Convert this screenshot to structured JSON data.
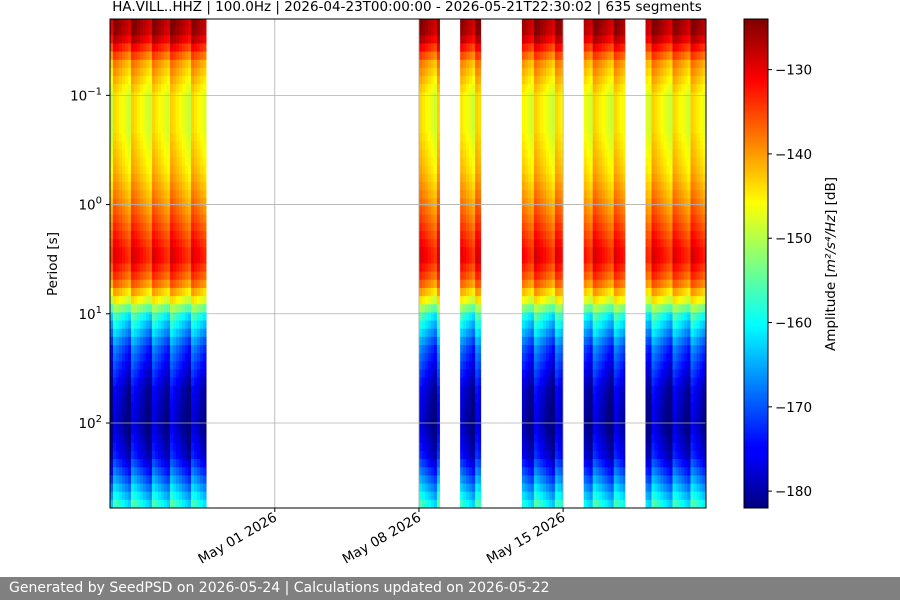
{
  "chart_data": {
    "type": "heatmap",
    "title": "HA.VILL..HHZ | 100.0Hz | 2026-04-23T00:00:00 - 2026-05-21T22:30:02 | 635 segments",
    "xlabel": "",
    "ylabel": "Period [s]",
    "x_axis": {
      "type": "date",
      "range": [
        "2026-04-23T00:00:00",
        "2026-05-21T22:30:02"
      ],
      "ticks": [
        {
          "value": "2026-05-01",
          "label": "May 01 2026"
        },
        {
          "value": "2026-05-08",
          "label": "May 08 2026"
        },
        {
          "value": "2026-05-15",
          "label": "May 15 2026"
        }
      ]
    },
    "y_axis": {
      "scale": "log",
      "inverted": true,
      "range": [
        0.02,
        600
      ],
      "ticks": [
        {
          "value": 0.1,
          "base": "10",
          "exp": "−1"
        },
        {
          "value": 1,
          "base": "10",
          "exp": "0"
        },
        {
          "value": 10,
          "base": "10",
          "exp": "1"
        },
        {
          "value": 100,
          "base": "10",
          "exp": "2"
        }
      ]
    },
    "grid": true,
    "colorbar": {
      "label_pre": "Amplitude [",
      "label_math": "m²/s⁴/Hz",
      "label_post": "] [dB]",
      "colormap": "jet",
      "range": [
        -182,
        -124
      ],
      "ticks": [
        -130,
        -140,
        -150,
        -160,
        -170,
        -180
      ],
      "tick_labels": [
        "−130",
        "−140",
        "−150",
        "−160",
        "−170",
        "−180"
      ]
    },
    "data_intervals": [
      {
        "start": "2026-04-23T00:00:00",
        "end": "2026-04-27T16:00:00"
      },
      {
        "start": "2026-05-08T00:00:00",
        "end": "2026-05-09T00:00:00"
      },
      {
        "start": "2026-05-10T00:00:00",
        "end": "2026-05-11T00:00:00"
      },
      {
        "start": "2026-05-13T00:00:00",
        "end": "2026-05-15T00:00:00"
      },
      {
        "start": "2026-05-16T00:00:00",
        "end": "2026-05-18T00:00:00"
      },
      {
        "start": "2026-05-19T00:00:00",
        "end": "2026-05-21T22:30:02"
      }
    ],
    "period_profile": [
      {
        "period": 0.02,
        "db": -126
      },
      {
        "period": 0.028,
        "db": -127
      },
      {
        "period": 0.05,
        "db": -140
      },
      {
        "period": 0.1,
        "db": -146
      },
      {
        "period": 0.2,
        "db": -146
      },
      {
        "period": 0.5,
        "db": -143
      },
      {
        "period": 1,
        "db": -139
      },
      {
        "period": 2,
        "db": -134
      },
      {
        "period": 3,
        "db": -131
      },
      {
        "period": 5,
        "db": -137
      },
      {
        "period": 8,
        "db": -148
      },
      {
        "period": 10,
        "db": -158
      },
      {
        "period": 20,
        "db": -170
      },
      {
        "period": 50,
        "db": -178
      },
      {
        "period": 100,
        "db": -180
      },
      {
        "period": 200,
        "db": -176
      },
      {
        "period": 350,
        "db": -167
      },
      {
        "period": 600,
        "db": -158
      }
    ]
  },
  "footer": {
    "text": "Generated by SeedPSD on 2026-05-24 | Calculations updated on 2026-05-22"
  }
}
